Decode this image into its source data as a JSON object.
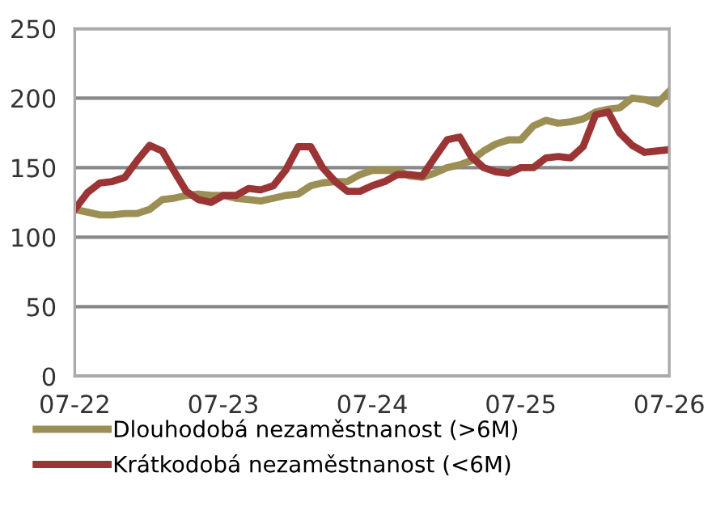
{
  "chart_data": {
    "type": "line",
    "x": [
      "2022-07",
      "2022-08",
      "2022-09",
      "2022-10",
      "2022-11",
      "2022-12",
      "2023-01",
      "2023-02",
      "2023-03",
      "2023-04",
      "2023-05",
      "2023-06",
      "2023-07",
      "2023-08",
      "2023-09",
      "2023-10",
      "2023-11",
      "2023-12",
      "2024-01",
      "2024-02",
      "2024-03",
      "2024-04",
      "2024-05",
      "2024-06",
      "2024-07",
      "2024-08",
      "2024-09",
      "2024-10",
      "2024-11",
      "2024-12",
      "2025-01",
      "2025-02",
      "2025-03",
      "2025-04",
      "2025-05",
      "2025-06",
      "2025-07",
      "2025-08",
      "2025-09",
      "2025-10",
      "2025-11",
      "2025-12",
      "2026-01",
      "2026-02",
      "2026-03",
      "2026-04",
      "2026-05",
      "2026-06",
      "2026-07"
    ],
    "series": [
      {
        "name": "Dlouhodobá nezaměstnanost (>6M)",
        "color": "#9c8f55",
        "values": [
          120,
          118,
          116,
          116,
          117,
          117,
          120,
          127,
          128,
          130,
          131,
          130,
          130,
          128,
          127,
          126,
          128,
          130,
          131,
          137,
          139,
          140,
          140,
          145,
          148,
          148,
          148,
          144,
          143,
          146,
          150,
          152,
          155,
          162,
          167,
          170,
          170,
          180,
          184,
          182,
          183,
          185,
          190,
          192,
          193,
          200,
          199,
          196,
          205
        ]
      },
      {
        "name": "Krátkodobá nezaměstnanost (<6M)",
        "color": "#9b3535",
        "values": [
          120,
          132,
          139,
          140,
          143,
          155,
          166,
          162,
          148,
          133,
          127,
          125,
          130,
          130,
          135,
          134,
          137,
          148,
          165,
          165,
          150,
          140,
          133,
          133,
          137,
          140,
          145,
          145,
          144,
          157,
          170,
          172,
          158,
          150,
          147,
          146,
          150,
          150,
          157,
          158,
          157,
          165,
          188,
          190,
          175,
          166,
          161,
          162,
          163
        ]
      }
    ],
    "xlim": [
      "2022-07",
      "2026-07"
    ],
    "xticks": [
      {
        "value": "2022-07",
        "label": "07-22"
      },
      {
        "value": "2023-07",
        "label": "07-23"
      },
      {
        "value": "2024-07",
        "label": "07-24"
      },
      {
        "value": "2025-07",
        "label": "07-25"
      },
      {
        "value": "2026-07",
        "label": "07-26"
      }
    ],
    "ylim": [
      0,
      250
    ],
    "yticks": [
      0,
      50,
      100,
      150,
      200,
      250
    ],
    "grid": "y",
    "legend": "bottom",
    "marker": "none",
    "line_style": "solid"
  }
}
